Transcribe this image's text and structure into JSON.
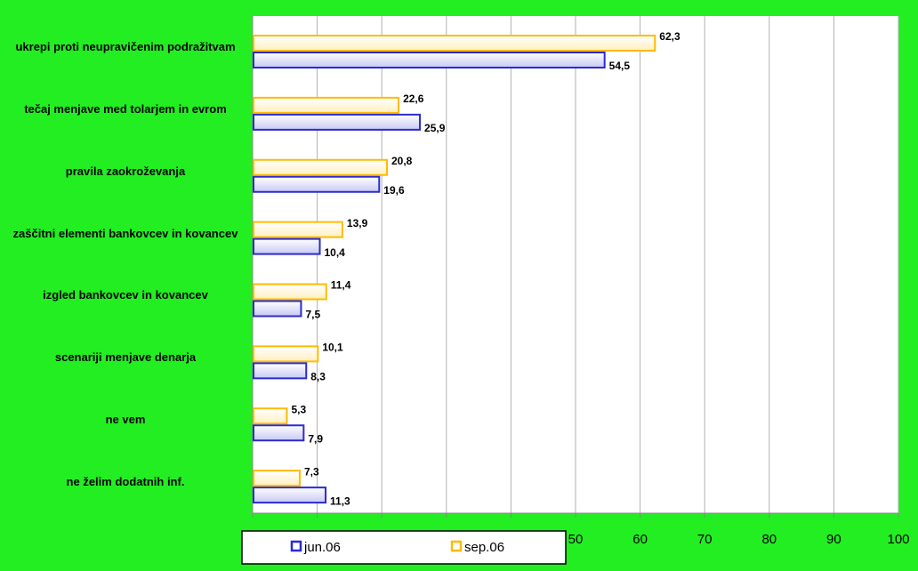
{
  "chart_data": {
    "type": "barh",
    "categories": [
      "ukrepi proti neupravičenim podražitvam",
      "tečaj menjave med tolarjem in evrom",
      "pravila zaokroževanja",
      "zaščitni elementi bankovcev in kovancev",
      "izgled bankovcev in kovancev",
      "scenariji menjave denarja",
      "ne vem",
      "ne želim dodatnih inf."
    ],
    "series": [
      {
        "name": "jun.06",
        "color": "#2b2bd0",
        "values": [
          54.5,
          25.9,
          19.6,
          10.4,
          7.5,
          8.3,
          7.9,
          11.3
        ],
        "value_labels": [
          "54,5",
          "25,9",
          "19,6",
          "10,4",
          "7,5",
          "8,3",
          "7,9",
          "11,3"
        ]
      },
      {
        "name": "sep.06",
        "color": "#ffbb00",
        "values": [
          62.3,
          22.6,
          20.8,
          13.9,
          11.4,
          10.1,
          5.3,
          7.3
        ],
        "value_labels": [
          "62,3",
          "22,6",
          "20,8",
          "13,9",
          "11,4",
          "10,1",
          "5,3",
          "7,3"
        ]
      }
    ],
    "xlim": [
      0,
      100
    ],
    "xticks": [
      0,
      10,
      20,
      30,
      40,
      50,
      60,
      70,
      80,
      90,
      100
    ],
    "grid": true,
    "legend": "bottom"
  }
}
